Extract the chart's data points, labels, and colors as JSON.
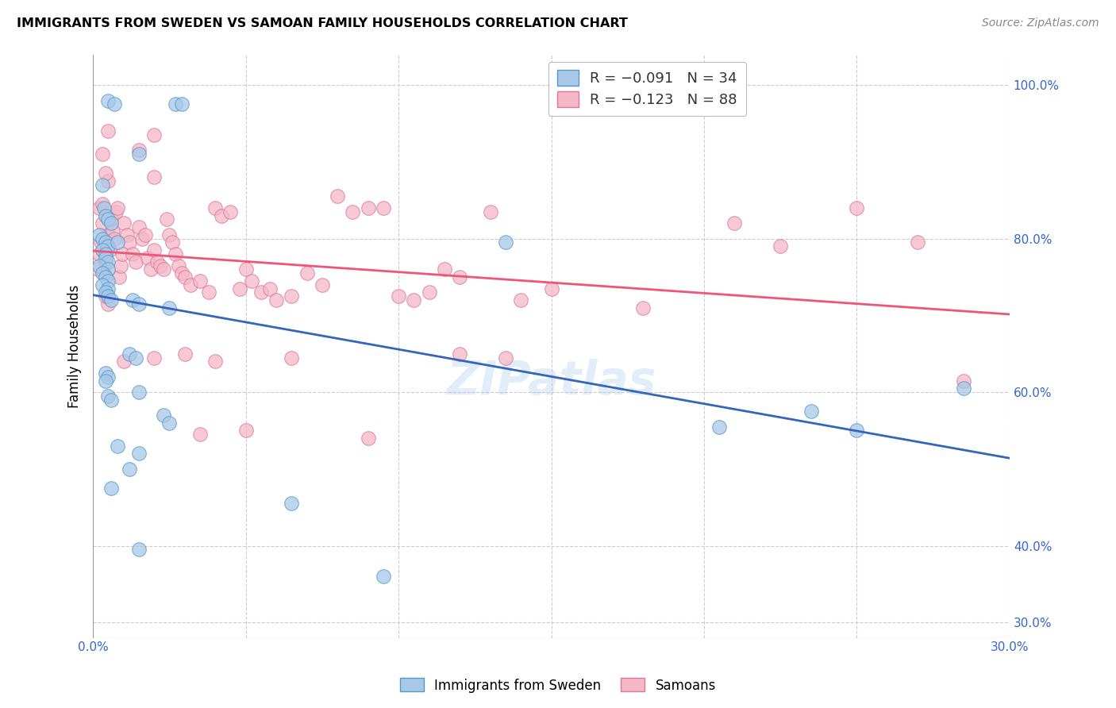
{
  "title": "IMMIGRANTS FROM SWEDEN VS SAMOAN FAMILY HOUSEHOLDS CORRELATION CHART",
  "source": "Source: ZipAtlas.com",
  "ylabel": "Family Households",
  "xmin": 0.0,
  "xmax": 30.0,
  "ymin": 28.0,
  "ymax": 104.0,
  "yticks": [
    30.0,
    40.0,
    60.0,
    80.0,
    100.0
  ],
  "xticks": [
    0.0,
    5.0,
    10.0,
    15.0,
    20.0,
    25.0,
    30.0
  ],
  "watermark": "ZIPatlas",
  "sweden_color": "#a8c8e8",
  "sweden_edgecolor": "#5599cc",
  "samoan_color": "#f4b8c8",
  "samoan_edgecolor": "#dd7799",
  "sweden_line_color": "#3366bb",
  "samoan_line_color": "#ee5577",
  "tick_color": "#3366cc",
  "sweden_scatter": [
    [
      0.5,
      98.0
    ],
    [
      0.7,
      97.5
    ],
    [
      2.7,
      97.5
    ],
    [
      2.9,
      97.5
    ],
    [
      1.5,
      91.0
    ],
    [
      0.3,
      87.0
    ],
    [
      0.35,
      84.0
    ],
    [
      0.4,
      83.0
    ],
    [
      0.5,
      82.5
    ],
    [
      0.6,
      82.0
    ],
    [
      0.2,
      80.5
    ],
    [
      0.3,
      80.0
    ],
    [
      0.4,
      79.5
    ],
    [
      0.5,
      79.0
    ],
    [
      0.8,
      79.5
    ],
    [
      0.3,
      78.5
    ],
    [
      0.4,
      78.0
    ],
    [
      0.4,
      77.5
    ],
    [
      0.5,
      77.0
    ],
    [
      0.2,
      76.5
    ],
    [
      0.5,
      76.0
    ],
    [
      0.3,
      75.5
    ],
    [
      0.4,
      75.0
    ],
    [
      0.5,
      74.5
    ],
    [
      0.3,
      74.0
    ],
    [
      0.5,
      73.5
    ],
    [
      0.4,
      73.0
    ],
    [
      0.5,
      72.5
    ],
    [
      0.6,
      72.0
    ],
    [
      1.3,
      72.0
    ],
    [
      1.5,
      71.5
    ],
    [
      2.5,
      71.0
    ],
    [
      13.5,
      79.5
    ],
    [
      1.2,
      65.0
    ],
    [
      1.4,
      64.5
    ],
    [
      0.4,
      62.5
    ],
    [
      0.5,
      62.0
    ],
    [
      0.4,
      61.5
    ],
    [
      1.5,
      60.0
    ],
    [
      0.5,
      59.5
    ],
    [
      0.6,
      59.0
    ],
    [
      2.3,
      57.0
    ],
    [
      2.5,
      56.0
    ],
    [
      0.8,
      53.0
    ],
    [
      1.5,
      52.0
    ],
    [
      1.2,
      50.0
    ],
    [
      0.6,
      47.5
    ],
    [
      6.5,
      45.5
    ],
    [
      1.5,
      39.5
    ],
    [
      9.5,
      36.0
    ],
    [
      20.5,
      55.5
    ],
    [
      23.5,
      57.5
    ],
    [
      25.0,
      55.0
    ],
    [
      28.5,
      60.5
    ]
  ],
  "samoan_scatter": [
    [
      0.15,
      76.0
    ],
    [
      0.2,
      78.0
    ],
    [
      0.25,
      79.5
    ],
    [
      0.3,
      82.0
    ],
    [
      0.35,
      75.5
    ],
    [
      0.4,
      77.0
    ],
    [
      0.45,
      79.0
    ],
    [
      0.5,
      80.5
    ],
    [
      0.55,
      78.5
    ],
    [
      0.6,
      82.5
    ],
    [
      0.65,
      81.0
    ],
    [
      0.7,
      80.0
    ],
    [
      0.75,
      83.5
    ],
    [
      0.8,
      84.0
    ],
    [
      0.85,
      75.0
    ],
    [
      0.9,
      76.5
    ],
    [
      0.95,
      78.0
    ],
    [
      1.0,
      82.0
    ],
    [
      1.1,
      80.5
    ],
    [
      1.2,
      79.5
    ],
    [
      1.3,
      78.0
    ],
    [
      1.4,
      77.0
    ],
    [
      1.5,
      81.5
    ],
    [
      1.6,
      80.0
    ],
    [
      1.7,
      80.5
    ],
    [
      1.8,
      77.5
    ],
    [
      1.9,
      76.0
    ],
    [
      2.0,
      78.5
    ],
    [
      2.1,
      77.0
    ],
    [
      2.2,
      76.5
    ],
    [
      2.3,
      76.0
    ],
    [
      2.4,
      82.5
    ],
    [
      2.5,
      80.5
    ],
    [
      2.6,
      79.5
    ],
    [
      2.7,
      78.0
    ],
    [
      2.8,
      76.5
    ],
    [
      2.9,
      75.5
    ],
    [
      3.0,
      75.0
    ],
    [
      3.2,
      74.0
    ],
    [
      3.5,
      74.5
    ],
    [
      3.8,
      73.0
    ],
    [
      4.0,
      84.0
    ],
    [
      4.2,
      83.0
    ],
    [
      4.5,
      83.5
    ],
    [
      4.8,
      73.5
    ],
    [
      5.0,
      76.0
    ],
    [
      5.2,
      74.5
    ],
    [
      5.5,
      73.0
    ],
    [
      5.8,
      73.5
    ],
    [
      6.0,
      72.0
    ],
    [
      6.5,
      72.5
    ],
    [
      7.0,
      75.5
    ],
    [
      7.5,
      74.0
    ],
    [
      8.0,
      85.5
    ],
    [
      8.5,
      83.5
    ],
    [
      9.0,
      84.0
    ],
    [
      9.5,
      84.0
    ],
    [
      10.0,
      72.5
    ],
    [
      10.5,
      72.0
    ],
    [
      11.0,
      73.0
    ],
    [
      11.5,
      76.0
    ],
    [
      12.0,
      75.0
    ],
    [
      13.0,
      83.5
    ],
    [
      14.0,
      72.0
    ],
    [
      15.0,
      73.5
    ],
    [
      1.5,
      91.5
    ],
    [
      2.0,
      88.0
    ],
    [
      0.5,
      87.5
    ],
    [
      0.3,
      91.0
    ],
    [
      0.2,
      84.0
    ],
    [
      0.3,
      84.5
    ],
    [
      0.5,
      71.5
    ],
    [
      0.4,
      72.5
    ],
    [
      1.0,
      64.0
    ],
    [
      2.0,
      64.5
    ],
    [
      3.0,
      65.0
    ],
    [
      4.0,
      64.0
    ],
    [
      6.5,
      64.5
    ],
    [
      12.0,
      65.0
    ],
    [
      13.5,
      64.5
    ],
    [
      18.0,
      71.0
    ],
    [
      21.0,
      82.0
    ],
    [
      22.5,
      79.0
    ],
    [
      25.0,
      84.0
    ],
    [
      27.0,
      79.5
    ],
    [
      28.5,
      61.5
    ],
    [
      0.5,
      94.0
    ],
    [
      2.0,
      93.5
    ],
    [
      0.4,
      88.5
    ],
    [
      3.5,
      54.5
    ],
    [
      5.0,
      55.0
    ],
    [
      9.0,
      54.0
    ]
  ]
}
